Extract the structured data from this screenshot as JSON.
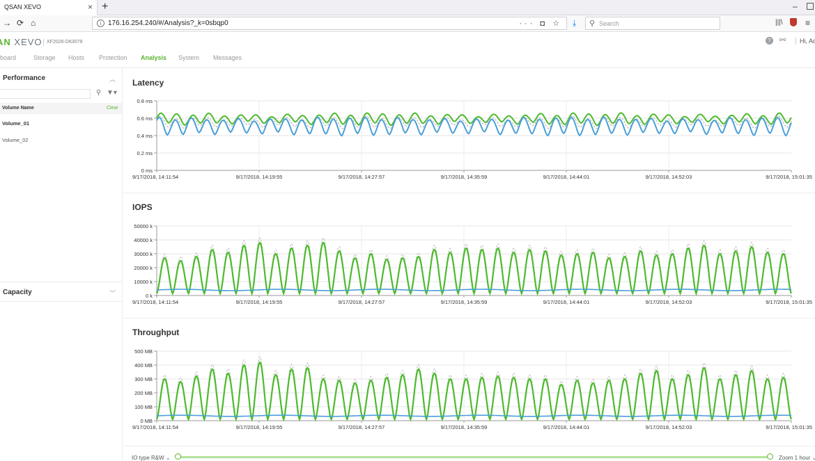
{
  "browser": {
    "tab_title": "QSAN XEVO",
    "url": "176.16.254.240/#/Analysis?_k=0sbqp0",
    "search_placeholder": "Search"
  },
  "app": {
    "logo_part1": "AN",
    "logo_part2": "XEVO",
    "model": "XF2026-D63079",
    "user_greeting": "Hi, Adm",
    "menu": [
      {
        "label": "hboard",
        "active": false
      },
      {
        "label": "Storage",
        "active": false
      },
      {
        "label": "Hosts",
        "active": false
      },
      {
        "label": "Protection",
        "active": false
      },
      {
        "label": "Analysis",
        "active": true
      },
      {
        "label": "System",
        "active": false
      },
      {
        "label": "Messages",
        "active": false
      }
    ]
  },
  "sidebar": {
    "performance_title": "Performance",
    "column_header": "Volume Name",
    "clear_label": "Clear",
    "volumes": [
      {
        "name": "Volume_01",
        "selected": true
      },
      {
        "name": "Volume_02",
        "selected": false
      }
    ],
    "capacity_title": "Capacity"
  },
  "bottom": {
    "io_type_label": "IO type R&W ⌄",
    "zoom_label": "Zoom 1 hour ⌄",
    "zoom_range": [
      0,
      1
    ]
  },
  "colors": {
    "accent_green": "#5cb531",
    "series_green": "#4cbb2c",
    "series_blue": "#4a9fd8",
    "series_gray": "#b9b9b9"
  },
  "chart_data": [
    {
      "type": "line",
      "title": "Latency",
      "x_start": "9/17/2018, 14:11:54",
      "x_end": "9/17/2018, 15:01:35",
      "x_ticks": [
        "9/17/2018, 14:11:54",
        "9/17/2018, 14:19:55",
        "9/17/2018, 14:27:57",
        "9/17/2018, 14:35:59",
        "9/17/2018, 14:44:01",
        "9/17/2018, 14:52:03",
        "9/17/2018, 15:01:35"
      ],
      "y_ticks": [
        "0.8 ms",
        "0.6 ms",
        "0.4 ms",
        "0.2 ms",
        "0 ms"
      ],
      "ylim": [
        0,
        0.8
      ],
      "grid": true,
      "cycles": 40,
      "series": [
        {
          "color": "green",
          "dashed": false,
          "min": 0.54,
          "max": 0.64
        },
        {
          "color": "gray",
          "dashed": true,
          "min": 0.5,
          "max": 0.6
        },
        {
          "color": "blue",
          "dashed": false,
          "min": 0.42,
          "max": 0.59
        }
      ]
    },
    {
      "type": "line",
      "title": "IOPS",
      "x_start": "9/17/2018, 14:11:54",
      "x_end": "9/17/2018, 15:01:35",
      "x_ticks": [
        "9/17/2018, 14:11:54",
        "9/17/2018, 14:19:55",
        "9/17/2018, 14:27:57",
        "9/17/2018, 14:35:59",
        "9/17/2018, 14:44:01",
        "9/17/2018, 14:52:03",
        "9/17/2018, 15:01:35"
      ],
      "y_ticks": [
        "50000 k",
        "40000 k",
        "30000 k",
        "20000 k",
        "10000 k",
        "0 k"
      ],
      "ylim": [
        0,
        50000
      ],
      "grid": true,
      "cycles": 40,
      "peaks": [
        27000,
        25000,
        28000,
        33000,
        31000,
        36000,
        38000,
        30000,
        34000,
        36000,
        38000,
        32000,
        27000,
        30000,
        26000,
        27000,
        28000,
        33000,
        31000,
        34000,
        33000,
        34000,
        31000,
        33000,
        32000,
        29000,
        30000,
        31000,
        27000,
        28000,
        32000,
        29000,
        30000,
        34000,
        36000,
        30000,
        32000,
        35000,
        31000,
        30000
      ],
      "troughs": 1500,
      "blue_level": 4000
    },
    {
      "type": "line",
      "title": "Throughput",
      "x_start": "9/17/2018, 14:11:54",
      "x_end": "9/17/2018, 15:01:35",
      "x_ticks": [
        "9/17/2018, 14:11:54",
        "9/17/2018, 14:19:55",
        "9/17/2018, 14:27:57",
        "9/17/2018, 14:35:59",
        "9/17/2018, 14:44:01",
        "9/17/2018, 14:52:03",
        "9/17/2018, 15:01:35"
      ],
      "y_ticks": [
        "500 MB",
        "400 MB",
        "300 MB",
        "200 MB",
        "100 MB",
        "0 MB"
      ],
      "ylim": [
        0,
        500
      ],
      "grid": true,
      "cycles": 40,
      "peaks": [
        300,
        280,
        320,
        370,
        340,
        400,
        420,
        330,
        370,
        380,
        300,
        290,
        270,
        290,
        310,
        330,
        370,
        340,
        300,
        300,
        310,
        320,
        310,
        300,
        300,
        260,
        290,
        270,
        290,
        300,
        340,
        360,
        300,
        330,
        380,
        300,
        330,
        360,
        300,
        310
      ],
      "troughs": 10,
      "blue_level": 35
    }
  ]
}
